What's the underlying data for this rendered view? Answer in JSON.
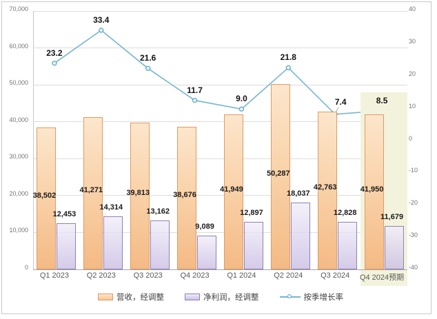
{
  "chart_data": {
    "type": "combo-bar-line",
    "title": "",
    "categories": [
      "Q1 2023",
      "Q2 2023",
      "Q3 2023",
      "Q4 2023",
      "Q1 2024",
      "Q2 2024",
      "Q3 2024",
      "Q4 2024预期"
    ],
    "series": [
      {
        "name": "营收，经调整",
        "type": "bar",
        "axis": "left",
        "values": [
          38502,
          41271,
          39813,
          38676,
          41949,
          50287,
          42763,
          41950
        ],
        "labels": [
          "38,502",
          "41,271",
          "39,813",
          "38,676",
          "41,949",
          "50,287",
          "42,763",
          "41,950"
        ],
        "label_position": "center"
      },
      {
        "name": "净利润，经调整",
        "type": "bar",
        "axis": "left",
        "values": [
          12453,
          14314,
          13162,
          9089,
          12897,
          18037,
          12828,
          11679
        ],
        "labels": [
          "12,453",
          "14,314",
          "13,162",
          "9,089",
          "12,897",
          "18,037",
          "12,828",
          "11,679"
        ],
        "label_position": "outside-end"
      },
      {
        "name": "按季增长率",
        "type": "line",
        "axis": "right",
        "values": [
          23.2,
          33.4,
          21.6,
          11.7,
          9.0,
          21.8,
          7.4,
          8.5
        ],
        "labels": [
          "23.2",
          "33.4",
          "21.6",
          "11.7",
          "9.0",
          "21.8",
          "7.4",
          "8.5"
        ],
        "label_offsets": {
          "6": [
            8,
            -3
          ]
        }
      }
    ],
    "left_axis": {
      "min": 0,
      "max": 70000,
      "step": 10000,
      "labels": [
        "70,000",
        "60,000",
        "50,000",
        "40,000",
        "30,000",
        "20,000",
        "10,000",
        "0"
      ]
    },
    "right_axis": {
      "min": -40,
      "max": 40,
      "step": 10,
      "labels": [
        "40",
        "30",
        "20",
        "10",
        "0",
        "-10",
        "-20",
        "-30",
        "-40"
      ]
    },
    "highlight": {
      "category_index": 7,
      "label": "Q4 2024预期"
    },
    "legend": [
      "营收，经调整",
      "净利润，经调整",
      "按季增长率"
    ],
    "legend_position": "bottom",
    "grid": true
  },
  "colors": {
    "revenue_border": "#e09a62",
    "revenue_fill_top": "#fce6cc",
    "revenue_fill_bottom": "#f4ba84",
    "profit_border": "#8f80b8",
    "profit_fill_top": "#f0edf8",
    "profit_fill_bottom": "#c9bce3",
    "growth_line": "#74b6d2",
    "marker_fill": "#e8f4fa",
    "marker_stroke": "#5fa8c9",
    "highlight_band": "#f3f3dd",
    "gridline": "#dcdcdc",
    "axis_line": "#a6a6a6",
    "tick_text": "#737373",
    "category_text": "#595959",
    "data_label_text": "#1a1a1a"
  }
}
